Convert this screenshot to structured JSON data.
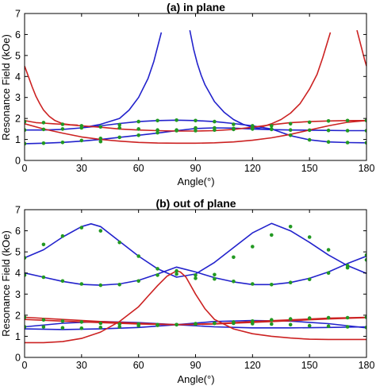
{
  "chart_data": [
    {
      "type": "line",
      "title": "(a) in plane",
      "xlabel": "Angle(°)",
      "ylabel": "Resonance Field (kOe)",
      "xlim": [
        0,
        180
      ],
      "ylim": [
        0,
        7
      ],
      "xticks": [
        0,
        30,
        60,
        90,
        120,
        150,
        180
      ],
      "yticks": [
        0,
        1,
        2,
        3,
        4,
        5,
        6,
        7
      ],
      "xtick_labels": [
        "0",
        "30",
        "60",
        "90",
        "120",
        "150",
        "180"
      ],
      "ytick_labels": [
        "0",
        "1",
        "2",
        "3",
        "4",
        "5",
        "6",
        "7"
      ],
      "grid": false,
      "series": [
        {
          "color": "#2222cc",
          "style": "line",
          "x": [
            0,
            10,
            20,
            30,
            40,
            50,
            60,
            70,
            80,
            90,
            100,
            110,
            120,
            130,
            140,
            150,
            160,
            170,
            180
          ],
          "y": [
            0.8,
            0.82,
            0.86,
            0.92,
            1.0,
            1.1,
            1.2,
            1.3,
            1.42,
            1.52,
            1.55,
            1.54,
            1.5,
            1.47,
            1.45,
            1.44,
            1.43,
            1.42,
            1.42
          ]
        },
        {
          "color": "#2222cc",
          "style": "line",
          "x": [
            0,
            10,
            20,
            30,
            40,
            50,
            60,
            70,
            80,
            90,
            100,
            110,
            120,
            130,
            140,
            150,
            160,
            170,
            180
          ],
          "y": [
            1.45,
            1.45,
            1.48,
            1.55,
            1.65,
            1.76,
            1.85,
            1.9,
            1.92,
            1.9,
            1.85,
            1.76,
            1.65,
            1.5,
            1.18,
            0.98,
            0.88,
            0.85,
            0.84
          ]
        },
        {
          "color": "#2222cc",
          "style": "line",
          "x": [
            30,
            40,
            50,
            55,
            60,
            65,
            68,
            70,
            72
          ],
          "y": [
            1.55,
            1.72,
            2.0,
            2.4,
            3.0,
            3.9,
            4.7,
            5.4,
            6.1
          ]
        },
        {
          "color": "#2222cc",
          "style": "line",
          "x": [
            87,
            89,
            91,
            93,
            95,
            100,
            105,
            110,
            115,
            120,
            125,
            130
          ],
          "y": [
            6.2,
            5.3,
            4.6,
            4.05,
            3.6,
            2.8,
            2.3,
            1.95,
            1.72,
            1.58,
            1.5,
            1.47
          ]
        },
        {
          "color": "#cc2222",
          "style": "line",
          "x": [
            0,
            3,
            6,
            10,
            15,
            20,
            30,
            40,
            50,
            60,
            70,
            80,
            90,
            100,
            110,
            120,
            130,
            140,
            150,
            160,
            170,
            180
          ],
          "y": [
            1.9,
            1.85,
            1.8,
            1.78,
            1.75,
            1.72,
            1.65,
            1.58,
            1.5,
            1.45,
            1.42,
            1.4,
            1.4,
            1.42,
            1.48,
            1.58,
            1.7,
            1.8,
            1.85,
            1.88,
            1.9,
            1.9
          ]
        },
        {
          "color": "#cc2222",
          "style": "line",
          "x": [
            0,
            10,
            20,
            30,
            40,
            50,
            60,
            70,
            80,
            90,
            100,
            110,
            120,
            130,
            140,
            150,
            160,
            170,
            180
          ],
          "y": [
            1.75,
            1.5,
            1.3,
            1.12,
            1.0,
            0.92,
            0.86,
            0.83,
            0.82,
            0.82,
            0.84,
            0.88,
            0.96,
            1.08,
            1.24,
            1.45,
            1.65,
            1.82,
            1.9
          ]
        },
        {
          "color": "#cc2222",
          "style": "line",
          "x": [
            0,
            2,
            4,
            6,
            8,
            10,
            13,
            16,
            20,
            24,
            28
          ],
          "y": [
            4.5,
            4.0,
            3.5,
            3.05,
            2.7,
            2.4,
            2.1,
            1.9,
            1.75,
            1.7,
            1.68
          ]
        },
        {
          "color": "#cc2222",
          "style": "line",
          "x": [
            125,
            130,
            135,
            140,
            145,
            150,
            154,
            157,
            159,
            161
          ],
          "y": [
            1.6,
            1.75,
            1.95,
            2.25,
            2.7,
            3.4,
            4.1,
            4.9,
            5.5,
            6.1
          ]
        },
        {
          "color": "#cc2222",
          "style": "line",
          "x": [
            175,
            177,
            179,
            180
          ],
          "y": [
            6.2,
            5.5,
            4.8,
            4.5
          ]
        },
        {
          "color": "#229922",
          "style": "markers",
          "x": [
            0,
            10,
            20,
            30,
            40,
            50,
            60,
            70,
            80,
            90,
            100,
            110,
            120,
            130,
            140,
            150,
            160,
            170,
            180
          ],
          "y": [
            0.8,
            0.82,
            0.86,
            0.95,
            1.05,
            1.1,
            1.2,
            1.32,
            1.45,
            1.55,
            1.55,
            1.52,
            1.5,
            1.48,
            1.45,
            1.44,
            1.43,
            1.42,
            1.42
          ]
        },
        {
          "color": "#229922",
          "style": "markers",
          "x": [
            0,
            10,
            20,
            30,
            40,
            50,
            60,
            70,
            80,
            90,
            100,
            110,
            120,
            130,
            140,
            150,
            160,
            170,
            180
          ],
          "y": [
            1.45,
            1.48,
            1.5,
            1.55,
            1.6,
            1.7,
            1.85,
            1.9,
            1.92,
            1.9,
            1.85,
            1.72,
            1.65,
            1.5,
            1.2,
            0.98,
            0.88,
            0.85,
            0.84
          ]
        },
        {
          "color": "#229922",
          "style": "markers",
          "x": [
            0,
            10,
            20,
            30,
            40,
            50,
            60,
            70,
            80,
            90,
            100,
            110,
            120,
            130,
            140,
            150,
            160,
            170,
            180
          ],
          "y": [
            1.85,
            1.8,
            1.72,
            1.65,
            0.9,
            1.55,
            1.5,
            1.45,
            1.42,
            1.42,
            1.45,
            1.48,
            1.55,
            1.65,
            1.75,
            1.82,
            1.88,
            1.9,
            1.9
          ]
        }
      ]
    },
    {
      "type": "line",
      "title": "(b) out of plane",
      "xlabel": "Angle(°)",
      "ylabel": "Resonance Field (kOe)",
      "xlim": [
        0,
        180
      ],
      "ylim": [
        0,
        7
      ],
      "xticks": [
        0,
        30,
        60,
        90,
        120,
        150,
        180
      ],
      "yticks": [
        0,
        1,
        2,
        3,
        4,
        5,
        6,
        7
      ],
      "xtick_labels": [
        "0",
        "30",
        "60",
        "90",
        "120",
        "150",
        "180"
      ],
      "ytick_labels": [
        "0",
        "1",
        "2",
        "3",
        "4",
        "5",
        "6",
        "7"
      ],
      "grid": false,
      "series": [
        {
          "color": "#2222cc",
          "style": "line",
          "x": [
            0,
            10,
            20,
            30,
            35,
            40,
            50,
            60,
            70,
            80,
            90,
            100,
            110,
            120,
            130,
            140,
            150,
            160,
            170,
            180
          ],
          "y": [
            4.72,
            5.1,
            5.7,
            6.2,
            6.33,
            6.2,
            5.5,
            4.8,
            4.2,
            3.8,
            3.95,
            4.5,
            5.2,
            5.9,
            6.35,
            6.0,
            5.45,
            4.85,
            4.35,
            3.98
          ]
        },
        {
          "color": "#2222cc",
          "style": "line",
          "x": [
            0,
            10,
            20,
            30,
            40,
            50,
            60,
            70,
            80,
            90,
            100,
            110,
            120,
            130,
            140,
            150,
            160,
            170,
            180
          ],
          "y": [
            4.0,
            3.8,
            3.6,
            3.46,
            3.42,
            3.48,
            3.65,
            3.95,
            4.28,
            4.05,
            3.78,
            3.58,
            3.45,
            3.45,
            3.55,
            3.75,
            4.05,
            4.45,
            4.8
          ]
        },
        {
          "color": "#2222cc",
          "style": "line",
          "x": [
            0,
            20,
            40,
            60,
            80,
            100,
            120,
            140,
            160,
            180
          ],
          "y": [
            1.45,
            1.62,
            1.7,
            1.65,
            1.55,
            1.45,
            1.4,
            1.4,
            1.42,
            1.45
          ]
        },
        {
          "color": "#2222cc",
          "style": "line",
          "x": [
            0,
            20,
            40,
            60,
            80,
            100,
            120,
            140,
            160,
            180
          ],
          "y": [
            1.35,
            1.32,
            1.35,
            1.42,
            1.55,
            1.7,
            1.75,
            1.72,
            1.6,
            1.4
          ]
        },
        {
          "color": "#cc2222",
          "style": "line",
          "x": [
            0,
            10,
            20,
            30,
            40,
            50,
            60,
            65,
            70,
            75,
            80,
            82,
            85,
            90,
            95,
            100,
            110,
            120,
            130,
            140,
            150,
            160,
            170,
            180
          ],
          "y": [
            0.7,
            0.7,
            0.75,
            0.9,
            1.2,
            1.7,
            2.4,
            2.9,
            3.4,
            3.85,
            4.1,
            4.05,
            3.8,
            3.0,
            2.3,
            1.8,
            1.35,
            1.12,
            1.0,
            0.92,
            0.86,
            0.85,
            0.85,
            0.85
          ]
        },
        {
          "color": "#cc2222",
          "style": "line",
          "x": [
            0,
            20,
            40,
            60,
            80,
            100,
            120,
            140,
            160,
            180
          ],
          "y": [
            1.9,
            1.8,
            1.7,
            1.62,
            1.55,
            1.6,
            1.7,
            1.78,
            1.86,
            1.9
          ]
        },
        {
          "color": "#cc2222",
          "style": "line",
          "x": [
            0,
            20,
            40,
            60,
            80,
            100,
            120,
            140,
            160,
            180
          ],
          "y": [
            1.8,
            1.72,
            1.65,
            1.58,
            1.55,
            1.58,
            1.66,
            1.74,
            1.82,
            1.88
          ]
        },
        {
          "color": "#229922",
          "style": "markers",
          "x": [
            0,
            10,
            20,
            30,
            40,
            50,
            60,
            70,
            80,
            90,
            100,
            110,
            120,
            130,
            140,
            150,
            160,
            170,
            180
          ],
          "y": [
            4.72,
            5.35,
            5.75,
            6.15,
            6.0,
            5.45,
            4.8,
            4.2,
            3.95,
            3.75,
            3.92,
            4.75,
            5.25,
            5.8,
            6.2,
            5.7,
            5.1,
            4.35,
            4.85
          ]
        },
        {
          "color": "#229922",
          "style": "markers",
          "x": [
            0,
            10,
            20,
            30,
            40,
            50,
            60,
            70,
            80,
            90,
            100,
            110,
            120,
            130,
            140,
            150,
            160,
            170,
            180
          ],
          "y": [
            3.9,
            3.8,
            3.62,
            3.48,
            3.42,
            3.45,
            3.62,
            3.9,
            4.1,
            3.9,
            3.72,
            3.6,
            3.48,
            3.45,
            3.55,
            3.7,
            4.0,
            4.25,
            4.62
          ]
        },
        {
          "color": "#229922",
          "style": "markers",
          "x": [
            0,
            10,
            20,
            30,
            40,
            50,
            60,
            70,
            80,
            90,
            100,
            110,
            120,
            130,
            140,
            150,
            160,
            170,
            180
          ],
          "y": [
            1.9,
            1.78,
            1.72,
            1.68,
            1.62,
            1.58,
            1.58,
            1.55,
            1.55,
            1.58,
            1.62,
            1.68,
            1.72,
            1.78,
            1.82,
            1.86,
            1.88,
            1.88,
            1.9
          ]
        },
        {
          "color": "#229922",
          "style": "markers",
          "x": [
            0,
            10,
            20,
            30,
            40,
            50,
            60,
            70,
            80,
            90,
            100,
            110,
            120,
            130,
            140,
            150,
            160,
            170,
            180
          ],
          "y": [
            1.45,
            1.45,
            1.4,
            1.38,
            1.42,
            1.45,
            1.5,
            1.52,
            1.55,
            1.6,
            1.62,
            1.62,
            1.6,
            1.58,
            1.55,
            1.5,
            1.48,
            1.45,
            1.42
          ]
        }
      ]
    }
  ]
}
